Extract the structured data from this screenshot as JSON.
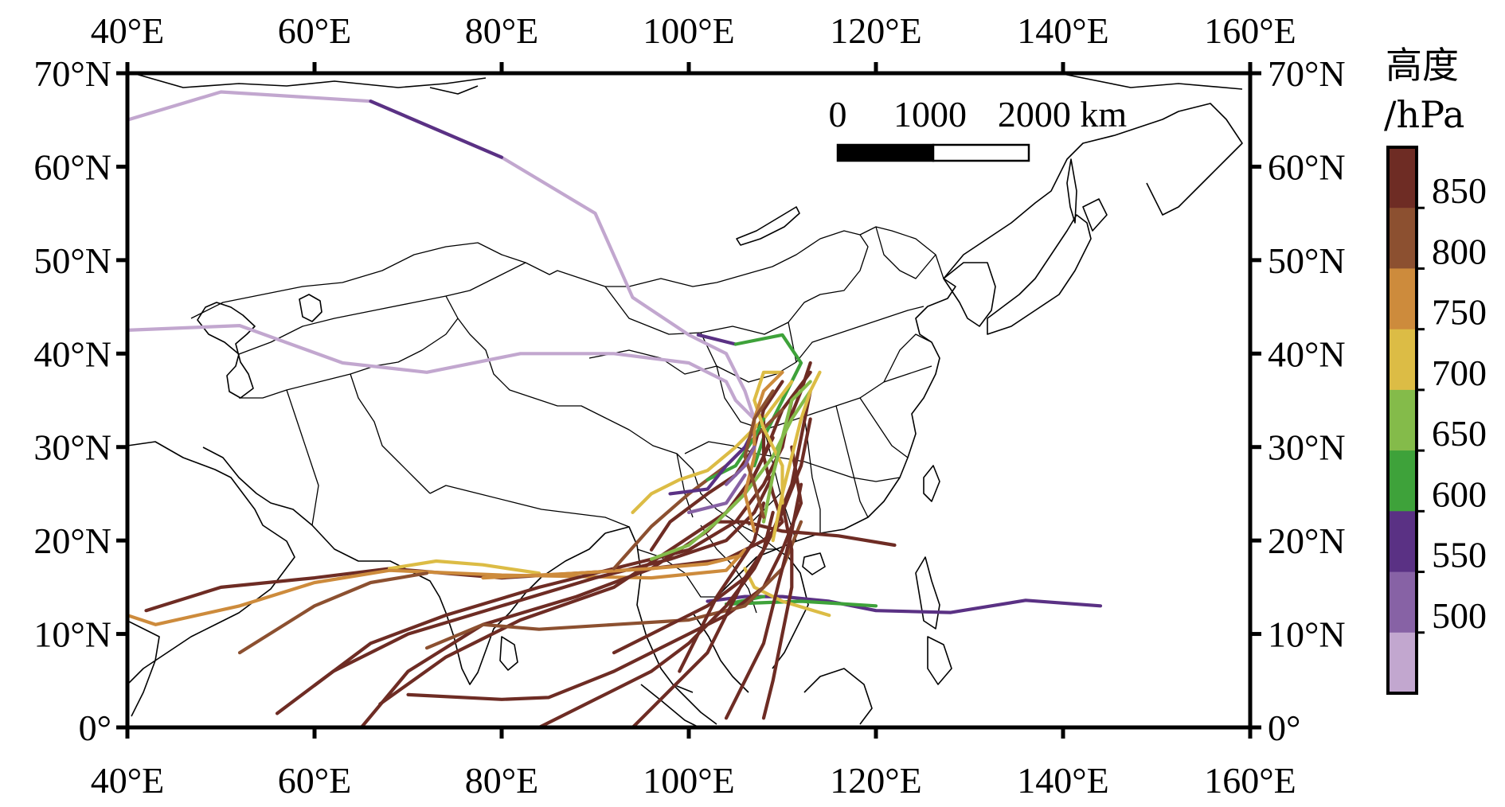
{
  "map": {
    "lon_ticks": [
      40,
      60,
      80,
      100,
      120,
      140,
      160
    ],
    "lat_ticks": [
      0,
      10,
      20,
      30,
      40,
      50,
      60,
      70
    ],
    "lon_labels": [
      "40°E",
      "60°E",
      "80°E",
      "100°E",
      "120°E",
      "140°E",
      "160°E"
    ],
    "lat_labels": [
      "0°",
      "10°N",
      "20°N",
      "30°N",
      "40°N",
      "50°N",
      "60°N",
      "70°N"
    ],
    "extent": {
      "lon": [
        40,
        160
      ],
      "lat": [
        0,
        70
      ]
    }
  },
  "scale_bar": {
    "labels": [
      "0",
      "1000",
      "2000 km"
    ],
    "segments_km": [
      0,
      1000,
      2000
    ]
  },
  "colorbar": {
    "title_line1": "高度",
    "title_line2": "/hPa",
    "tick_labels": [
      "850",
      "800",
      "750",
      "700",
      "650",
      "600",
      "550",
      "500"
    ],
    "tick_values": [
      850,
      800,
      750,
      700,
      650,
      600,
      550,
      500
    ],
    "colors_top_to_bottom": [
      "#6e2c24",
      "#8c5030",
      "#cd8b3c",
      "#dcbc45",
      "#84bb4a",
      "#3ea23a",
      "#5a3184",
      "#8762a5",
      "#c2a7cf"
    ]
  },
  "trajectories": [
    {
      "color": "#c2a7cf",
      "points": [
        [
          40,
          65
        ],
        [
          50,
          68
        ],
        [
          66,
          67
        ],
        [
          80,
          61
        ],
        [
          90,
          55
        ],
        [
          94,
          46
        ],
        [
          100,
          42
        ],
        [
          104,
          40
        ],
        [
          106,
          36
        ],
        [
          107,
          33
        ]
      ]
    },
    {
      "color": "#5a3184",
      "points": [
        [
          66,
          67
        ],
        [
          80,
          61
        ]
      ]
    },
    {
      "color": "#c2a7cf",
      "points": [
        [
          40,
          42.5
        ],
        [
          52,
          43
        ],
        [
          63,
          39
        ],
        [
          72,
          38
        ],
        [
          82,
          40
        ],
        [
          92,
          40
        ],
        [
          100,
          39
        ],
        [
          104,
          37
        ],
        [
          105,
          35
        ],
        [
          107,
          33
        ]
      ]
    },
    {
      "color": "#5a3184",
      "points": [
        [
          101,
          42
        ],
        [
          105,
          41
        ]
      ]
    },
    {
      "color": "#3ea23a",
      "points": [
        [
          105,
          41
        ],
        [
          110,
          42
        ],
        [
          112,
          39
        ],
        [
          110,
          35
        ],
        [
          108,
          31
        ],
        [
          107,
          28
        ]
      ]
    },
    {
      "color": "#5a3184",
      "points": [
        [
          144,
          13
        ],
        [
          136,
          13.6
        ],
        [
          128,
          12.3
        ],
        [
          120,
          12.5
        ],
        [
          115,
          13.5
        ],
        [
          110,
          14
        ],
        [
          106,
          14
        ],
        [
          102,
          13.5
        ]
      ]
    },
    {
      "color": "#3ea23a",
      "points": [
        [
          120,
          13
        ],
        [
          112,
          13.5
        ],
        [
          104,
          13.2
        ],
        [
          108,
          14
        ]
      ]
    },
    {
      "color": "#dcbc45",
      "points": [
        [
          115,
          12
        ],
        [
          110,
          13.5
        ],
        [
          107,
          15
        ],
        [
          106,
          17
        ]
      ]
    },
    {
      "color": "#6e2c24",
      "points": [
        [
          42,
          12.5
        ],
        [
          50,
          15
        ],
        [
          60,
          16
        ],
        [
          68,
          17
        ],
        [
          80,
          16
        ],
        [
          88,
          16.5
        ],
        [
          96,
          17
        ],
        [
          104,
          18
        ],
        [
          108,
          20
        ],
        [
          110,
          22
        ],
        [
          109,
          25
        ],
        [
          108,
          29
        ],
        [
          108,
          33
        ]
      ]
    },
    {
      "color": "#dcbc45",
      "points": [
        [
          68,
          17
        ],
        [
          73,
          17.8
        ],
        [
          78,
          17.4
        ],
        [
          84,
          16.5
        ]
      ]
    },
    {
      "color": "#cd8b3c",
      "points": [
        [
          40,
          12
        ],
        [
          43,
          11
        ],
        [
          52,
          13
        ],
        [
          60,
          15.5
        ],
        [
          68,
          16.8
        ],
        [
          80,
          16.3
        ],
        [
          96,
          16
        ],
        [
          104,
          16.8
        ],
        [
          106,
          19
        ]
      ]
    },
    {
      "color": "#8c5030",
      "points": [
        [
          52,
          8
        ],
        [
          60,
          13
        ],
        [
          66,
          15.5
        ],
        [
          72,
          16.5
        ]
      ]
    },
    {
      "color": "#6e2c24",
      "points": [
        [
          56,
          1.5
        ],
        [
          62,
          6
        ],
        [
          70,
          10
        ],
        [
          80,
          13
        ],
        [
          90,
          16
        ],
        [
          98,
          18
        ],
        [
          104,
          20
        ],
        [
          107,
          23
        ],
        [
          109,
          27
        ],
        [
          110,
          31
        ],
        [
          112,
          36
        ],
        [
          113,
          39
        ]
      ]
    },
    {
      "color": "#6e2c24",
      "points": [
        [
          60,
          4.5
        ],
        [
          66,
          9
        ],
        [
          74,
          12
        ],
        [
          84,
          15
        ],
        [
          94,
          17.5
        ],
        [
          100,
          19
        ],
        [
          105,
          22
        ],
        [
          108,
          26
        ],
        [
          110,
          30
        ],
        [
          111,
          35
        ]
      ]
    },
    {
      "color": "#6e2c24",
      "points": [
        [
          65,
          0
        ],
        [
          70,
          6
        ],
        [
          78,
          11
        ],
        [
          88,
          14
        ],
        [
          96,
          17
        ],
        [
          102,
          21
        ],
        [
          106,
          25
        ],
        [
          108,
          29
        ],
        [
          110,
          34
        ],
        [
          113,
          38
        ]
      ]
    },
    {
      "color": "#6e2c24",
      "points": [
        [
          67,
          2.5
        ],
        [
          74,
          7.5
        ],
        [
          82,
          11.5
        ],
        [
          92,
          15
        ],
        [
          98,
          19
        ],
        [
          104,
          23
        ],
        [
          107,
          27
        ],
        [
          109,
          31
        ]
      ]
    },
    {
      "color": "#6e2c24",
      "points": [
        [
          70,
          3.5
        ],
        [
          80,
          3
        ],
        [
          85,
          3.2
        ],
        [
          92,
          6
        ],
        [
          98,
          9
        ],
        [
          104,
          12
        ],
        [
          108,
          15
        ],
        [
          110,
          19
        ],
        [
          112,
          24
        ],
        [
          111,
          30
        ]
      ]
    },
    {
      "color": "#8c5030",
      "points": [
        [
          72,
          8.5
        ],
        [
          78,
          11
        ],
        [
          84,
          10.5
        ],
        [
          92,
          11
        ],
        [
          100,
          11.5
        ],
        [
          106,
          13
        ],
        [
          110,
          17
        ],
        [
          112,
          22
        ]
      ]
    },
    {
      "color": "#6e2c24",
      "points": [
        [
          84,
          0
        ],
        [
          90,
          3
        ],
        [
          96,
          6
        ],
        [
          100,
          9
        ],
        [
          104,
          13
        ],
        [
          107,
          17
        ],
        [
          109,
          21
        ],
        [
          111,
          26
        ],
        [
          112,
          31
        ],
        [
          113,
          36
        ]
      ]
    },
    {
      "color": "#6e2c24",
      "points": [
        [
          92,
          8
        ],
        [
          96,
          10
        ],
        [
          102,
          13
        ],
        [
          106,
          16
        ],
        [
          108,
          19
        ],
        [
          110,
          23
        ],
        [
          112,
          28
        ],
        [
          113,
          33
        ]
      ]
    },
    {
      "color": "#cd8b3c",
      "points": [
        [
          78,
          16
        ],
        [
          88,
          16.5
        ],
        [
          96,
          17
        ],
        [
          102,
          17.5
        ],
        [
          106,
          18.5
        ]
      ]
    },
    {
      "color": "#6e2c24",
      "points": [
        [
          94,
          0
        ],
        [
          98,
          4
        ],
        [
          102,
          8
        ],
        [
          104,
          12
        ],
        [
          106,
          16
        ],
        [
          108,
          19
        ],
        [
          109,
          23
        ]
      ]
    },
    {
      "color": "#6e2c24",
      "points": [
        [
          99,
          6
        ],
        [
          101,
          10
        ],
        [
          103,
          14
        ],
        [
          105,
          17
        ],
        [
          107,
          20
        ],
        [
          108,
          24
        ]
      ]
    },
    {
      "color": "#6e2c24",
      "points": [
        [
          104,
          1
        ],
        [
          106,
          5
        ],
        [
          108,
          9
        ],
        [
          109,
          13
        ],
        [
          110,
          17
        ],
        [
          111,
          21
        ],
        [
          112,
          26
        ]
      ]
    },
    {
      "color": "#6e2c24",
      "points": [
        [
          108,
          1
        ],
        [
          109,
          5
        ],
        [
          110,
          10
        ],
        [
          111,
          15
        ],
        [
          111,
          19
        ],
        [
          110,
          24
        ]
      ]
    },
    {
      "color": "#6e2c24",
      "points": [
        [
          122,
          19.5
        ],
        [
          116,
          20.5
        ],
        [
          110,
          21
        ],
        [
          106,
          22
        ],
        [
          103,
          22
        ]
      ]
    },
    {
      "color": "#84bb4a",
      "points": [
        [
          96,
          18
        ],
        [
          100,
          19.5
        ],
        [
          103,
          22
        ],
        [
          106,
          25
        ],
        [
          109,
          29
        ],
        [
          111,
          33
        ],
        [
          113,
          36
        ]
      ]
    },
    {
      "color": "#8c5030",
      "points": [
        [
          92,
          17
        ],
        [
          96,
          21.5
        ],
        [
          100,
          25
        ],
        [
          104,
          28
        ],
        [
          107,
          31
        ],
        [
          110,
          34
        ]
      ]
    },
    {
      "color": "#dcbc45",
      "points": [
        [
          94,
          23
        ],
        [
          96,
          25
        ],
        [
          99,
          26.5
        ],
        [
          102,
          27.5
        ],
        [
          105,
          30
        ],
        [
          108,
          33
        ],
        [
          111,
          37
        ]
      ]
    },
    {
      "color": "#6e2c24",
      "points": [
        [
          96,
          19
        ],
        [
          98,
          22
        ],
        [
          102,
          25
        ],
        [
          105,
          27
        ],
        [
          107,
          30
        ],
        [
          108,
          34
        ],
        [
          110,
          37
        ]
      ]
    },
    {
      "color": "#3ea23a",
      "points": [
        [
          102,
          26.5
        ],
        [
          105,
          28
        ],
        [
          107,
          31
        ],
        [
          108,
          33
        ]
      ]
    },
    {
      "color": "#5a3184",
      "points": [
        [
          98,
          25
        ],
        [
          102,
          25.5
        ],
        [
          104,
          28
        ],
        [
          106,
          30
        ],
        [
          107,
          32
        ]
      ]
    },
    {
      "color": "#8762a5",
      "points": [
        [
          100,
          23
        ],
        [
          104,
          24
        ],
        [
          106,
          27
        ]
      ]
    },
    {
      "color": "#dcbc45",
      "points": [
        [
          110,
          24
        ],
        [
          110,
          28
        ],
        [
          108,
          32
        ],
        [
          107,
          35
        ],
        [
          108,
          38
        ],
        [
          110,
          38
        ]
      ]
    },
    {
      "color": "#cd8b3c",
      "points": [
        [
          107,
          21
        ],
        [
          106,
          25
        ],
        [
          107,
          29
        ],
        [
          107,
          33
        ],
        [
          108,
          36
        ],
        [
          110,
          38
        ]
      ]
    },
    {
      "color": "#dcbc45",
      "points": [
        [
          109,
          20
        ],
        [
          110,
          25
        ],
        [
          111,
          29
        ],
        [
          112,
          33
        ],
        [
          113,
          36
        ],
        [
          114,
          38
        ]
      ]
    },
    {
      "color": "#84bb4a",
      "points": [
        [
          108,
          22
        ],
        [
          109,
          27
        ],
        [
          110,
          31
        ],
        [
          111,
          35
        ],
        [
          113,
          37
        ]
      ]
    },
    {
      "color": "#8c5030",
      "points": [
        [
          108,
          22.5
        ],
        [
          107,
          26
        ],
        [
          106,
          29
        ],
        [
          107,
          33
        ],
        [
          109,
          36
        ]
      ]
    },
    {
      "color": "#8762a5",
      "points": [
        [
          104,
          26
        ],
        [
          106,
          28
        ],
        [
          107,
          30
        ]
      ]
    }
  ]
}
